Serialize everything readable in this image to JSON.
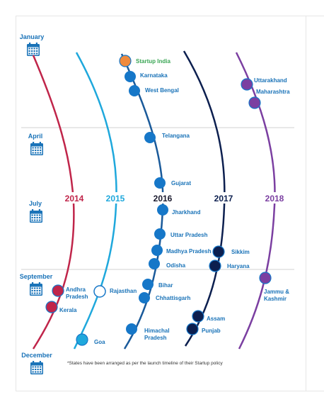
{
  "months": [
    "January",
    "April",
    "July",
    "September",
    "December"
  ],
  "years": [
    {
      "label": "2014",
      "color": "#c0254a"
    },
    {
      "label": "2015",
      "color": "#1fa8dc"
    },
    {
      "label": "2016",
      "color": "#1a3a6b"
    },
    {
      "label": "2017",
      "color": "#0c1f4f"
    },
    {
      "label": "2018",
      "color": "#7b3fa1"
    }
  ],
  "year_2016_label_color": "#1a1a2e",
  "states": {
    "startup_india": "Startup India",
    "karnataka": "Karnataka",
    "west_bengal": "West Bengal",
    "telangana": "Telangana",
    "gujarat": "Gujarat",
    "jharkhand": "Jharkhand",
    "uttar_pradesh": "Uttar Pradesh",
    "madhya_pradesh": "Madhya Pradesh",
    "odisha": "Odisha",
    "bihar": "Bihar",
    "chhattisgarh": "Chhattisgarh",
    "himachal_line1": "Himachal",
    "himachal_line2": "Pradesh",
    "uttarakhand": "Uttarakhand",
    "maharashtra": "Maharashtra",
    "sikkim": "Sikkim",
    "haryana": "Haryana",
    "assam": "Assam",
    "punjab": "Punjab",
    "andhra_line1": "Andhra",
    "andhra_line2": "Pradesh",
    "kerala": "Kerala",
    "rajasthan": "Rajasthan",
    "goa": "Goa",
    "jammu_line1": "Jammu &",
    "jammu_line2": "Kashmir"
  },
  "footnote": "*States have been arranged as per the launch timeline of their Startup policy",
  "colors": {
    "month_text": "#1a73b8",
    "state_text": "#1a73b8",
    "startup_india_text": "#3aa655",
    "startup_india_fill": "#f08a3c",
    "node_2016": "#1677c8",
    "gridline": "#d0d0d0",
    "calendar": "#1a73b8"
  },
  "icons": [
    "calendar-icon"
  ]
}
